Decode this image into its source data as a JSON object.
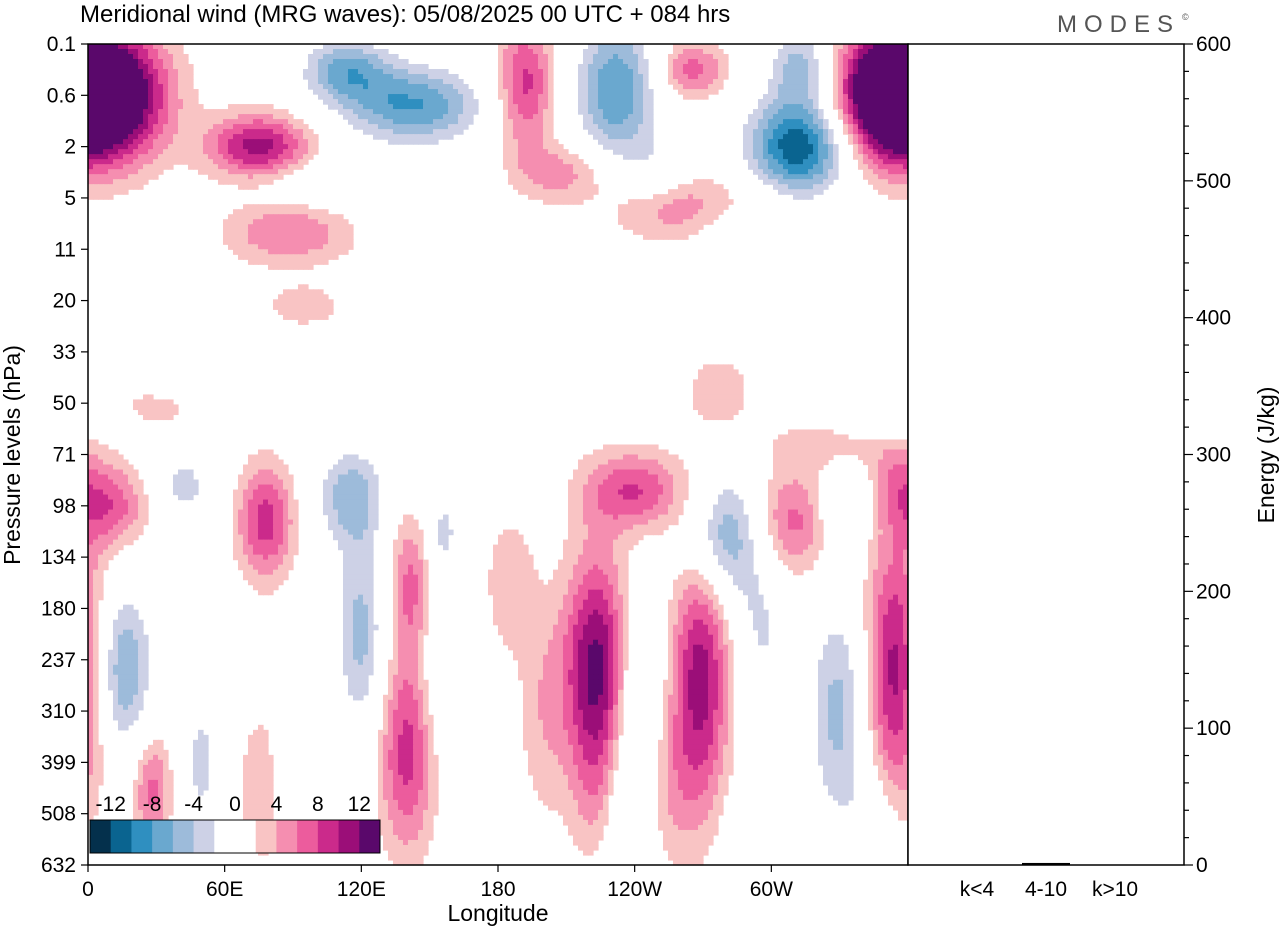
{
  "chart_data": {
    "type": "heatmap",
    "title": "Meridional wind (MRG waves):  05/08/2025  00 UTC  + 084 hrs",
    "logo": "MODES",
    "logo_mark": "©",
    "xlabel": "Longitude",
    "ylabel": "Pressure levels (hPa)",
    "x_ticks": [
      {
        "lon": 0,
        "label": "0"
      },
      {
        "lon": 60,
        "label": "60E"
      },
      {
        "lon": 120,
        "label": "120E"
      },
      {
        "lon": 180,
        "label": "180"
      },
      {
        "lon": 240,
        "label": "120W"
      },
      {
        "lon": 300,
        "label": "60W"
      }
    ],
    "xlim": [
      0,
      360
    ],
    "pressure_levels": [
      "0.1",
      "0.6",
      "2",
      "5",
      "11",
      "20",
      "33",
      "50",
      "71",
      "98",
      "134",
      "180",
      "237",
      "310",
      "399",
      "508",
      "632"
    ],
    "colorbar": {
      "levels": [
        -14,
        -12,
        -10,
        -8,
        -6,
        -4,
        -2,
        2,
        4,
        6,
        8,
        10,
        12,
        14
      ],
      "labels": [
        "-12",
        "-8",
        "-4",
        "0",
        "4",
        "8",
        "12"
      ],
      "label_values": [
        -12,
        -8,
        -4,
        0,
        4,
        8,
        12
      ],
      "colors": [
        "#04304c",
        "#0a6490",
        "#2f8fc0",
        "#6aa8cf",
        "#9dbbda",
        "#cdd1e6",
        "#ffffff",
        "#ffffff",
        "#f9c4c4",
        "#f58eb0",
        "#ec5c9d",
        "#cb2a8b",
        "#9b0e78",
        "#5a086b"
      ]
    },
    "blobs": [
      {
        "lon": 10,
        "lev": 1.0,
        "amp": 16,
        "wlon": 18,
        "wlev": 0.9
      },
      {
        "lon": 350,
        "lev": 1.0,
        "amp": 16,
        "wlon": 16,
        "wlev": 0.9
      },
      {
        "lon": 75,
        "lev": 2.0,
        "amp": 11,
        "wlon": 16,
        "wlev": 0.45
      },
      {
        "lon": 113,
        "lev": 0.5,
        "amp": -8,
        "wlon": 14,
        "wlev": 0.45
      },
      {
        "lon": 143,
        "lev": 1.2,
        "amp": -10,
        "wlon": 22,
        "wlev": 0.55
      },
      {
        "lon": 192,
        "lev": 0.8,
        "amp": 9,
        "wlon": 9,
        "wlev": 0.9
      },
      {
        "lon": 232,
        "lev": 0.9,
        "amp": -10,
        "wlon": 13,
        "wlev": 1.0
      },
      {
        "lon": 265,
        "lev": 0.5,
        "amp": 7,
        "wlon": 11,
        "wlev": 0.4
      },
      {
        "lon": 313,
        "lev": 0.4,
        "amp": -7,
        "wlon": 10,
        "wlev": 0.5
      },
      {
        "lon": 312,
        "lev": 2.0,
        "amp": -14,
        "wlon": 16,
        "wlev": 0.7
      },
      {
        "lon": 208,
        "lev": 2.5,
        "amp": 5,
        "wlon": 15,
        "wlev": 0.4
      },
      {
        "lon": 266,
        "lev": 3.2,
        "amp": 6,
        "wlon": 26,
        "wlev": 0.5
      },
      {
        "lon": 88,
        "lev": 3.7,
        "amp": 6,
        "wlon": 20,
        "wlev": 0.45
      },
      {
        "lon": 250,
        "lev": 2.5,
        "amp": -3.5,
        "wlon": 10,
        "wlev": 0.4
      },
      {
        "lon": 105,
        "lev": 2.7,
        "amp": -3.5,
        "wlon": 20,
        "wlev": 0.3
      },
      {
        "lon": 155,
        "lev": 3.2,
        "amp": -3.5,
        "wlon": 14,
        "wlev": 0.5
      },
      {
        "lon": 210,
        "lev": 4.5,
        "amp": -3.5,
        "wlon": 20,
        "wlev": 0.35
      },
      {
        "lon": 350,
        "lev": 4.3,
        "amp": -3.5,
        "wlon": 12,
        "wlev": 0.3
      },
      {
        "lon": 280,
        "lev": 3.6,
        "amp": -3.5,
        "wlon": 12,
        "wlev": 0.5
      },
      {
        "lon": 30,
        "lev": 7.0,
        "amp": 3.5,
        "wlon": 14,
        "wlev": 0.35
      },
      {
        "lon": 40,
        "lev": 6.5,
        "amp": -3.5,
        "wlon": 14,
        "wlev": 0.3
      },
      {
        "lon": 325,
        "lev": 7.8,
        "amp": 3.5,
        "wlon": 18,
        "wlev": 0.35
      },
      {
        "lon": 350,
        "lev": 7.2,
        "amp": -3.5,
        "wlon": 16,
        "wlev": 0.3
      },
      {
        "lon": 277,
        "lev": 6.8,
        "amp": 4,
        "wlon": 10,
        "wlev": 0.5
      },
      {
        "lon": 95,
        "lev": 5.1,
        "amp": 3.5,
        "wlon": 12,
        "wlev": 0.3
      },
      {
        "lon": 11,
        "lev": 9.0,
        "amp": 7,
        "wlon": 11,
        "wlev": 0.6
      },
      {
        "lon": 42,
        "lev": 8.6,
        "amp": -5,
        "wlon": 9,
        "wlev": 0.5
      },
      {
        "lon": 78,
        "lev": 9.3,
        "amp": 9,
        "wlon": 9,
        "wlev": 0.8
      },
      {
        "lon": 115,
        "lev": 8.8,
        "amp": -7,
        "wlon": 11,
        "wlev": 0.7
      },
      {
        "lon": 143,
        "lev": 10.5,
        "amp": 7,
        "wlon": 8,
        "wlev": 1.0
      },
      {
        "lon": 156,
        "lev": 9.5,
        "amp": -4,
        "wlon": 6,
        "wlev": 0.7
      },
      {
        "lon": 240,
        "lev": 8.7,
        "amp": 8,
        "wlon": 16,
        "wlev": 0.55
      },
      {
        "lon": 280,
        "lev": 9.6,
        "amp": -9,
        "wlon": 12,
        "wlev": 0.9
      },
      {
        "lon": 310,
        "lev": 9.3,
        "amp": 7,
        "wlon": 14,
        "wlev": 0.75
      },
      {
        "lon": 330,
        "lev": 9.0,
        "amp": -5,
        "wlon": 8,
        "wlev": 0.6
      },
      {
        "lon": 355,
        "lev": 8.5,
        "amp": 4,
        "wlon": 8,
        "wlev": 0.6
      },
      {
        "lon": 14,
        "lev": 12.2,
        "amp": -9,
        "wlon": 10,
        "wlev": 1.2
      },
      {
        "lon": 120,
        "lev": 11.5,
        "amp": -7,
        "wlon": 8,
        "wlev": 1.4
      },
      {
        "lon": 153,
        "lev": 11.5,
        "amp": -4,
        "wlon": 6,
        "wlev": 1.6
      },
      {
        "lon": 185,
        "lev": 10.5,
        "amp": 3.5,
        "wlon": 8,
        "wlev": 1.0
      },
      {
        "lon": 223,
        "lev": 12.2,
        "amp": 13,
        "wlon": 10,
        "wlev": 1.6
      },
      {
        "lon": 242,
        "lev": 12.5,
        "amp": -5,
        "wlon": 7,
        "wlev": 1.2
      },
      {
        "lon": 269,
        "lev": 12.3,
        "amp": 11,
        "wlon": 9,
        "wlev": 1.8
      },
      {
        "lon": 296,
        "lev": 11.5,
        "amp": -4,
        "wlon": 8,
        "wlev": 1.0
      },
      {
        "lon": 330,
        "lev": 13.0,
        "amp": -7,
        "wlon": 10,
        "wlev": 1.6
      },
      {
        "lon": 355,
        "lev": 12.2,
        "amp": 12,
        "wlon": 10,
        "wlev": 1.8
      },
      {
        "lon": 140,
        "lev": 13.8,
        "amp": 9,
        "wlon": 9,
        "wlev": 1.4
      },
      {
        "lon": 28,
        "lev": 14.5,
        "amp": 7,
        "wlon": 6,
        "wlev": 0.8
      },
      {
        "lon": 50,
        "lev": 14.0,
        "amp": -5,
        "wlon": 6,
        "wlev": 1.0
      },
      {
        "lon": 80,
        "lev": 14.5,
        "amp": 3.5,
        "wlon": 12,
        "wlev": 1.4
      },
      {
        "lon": 90,
        "lev": 14.3,
        "amp": -3.5,
        "wlon": 7,
        "wlev": 1.0
      },
      {
        "lon": 200,
        "lev": 13.0,
        "amp": 3.5,
        "wlon": 8,
        "wlev": 1.5
      },
      {
        "lon": 236,
        "lev": 15.0,
        "amp": -6,
        "wlon": 8,
        "wlev": 1.2
      },
      {
        "lon": 255,
        "lev": 14.5,
        "amp": 3.5,
        "wlon": 10,
        "wlev": 1.2
      },
      {
        "lon": 298,
        "lev": 15.5,
        "amp": -3.5,
        "wlon": 10,
        "wlev": 0.8
      },
      {
        "lon": 225,
        "lev": 14.8,
        "amp": 3.5,
        "wlon": 8,
        "wlev": 1.0
      },
      {
        "lon": 345,
        "lev": 15.5,
        "amp": -3.5,
        "wlon": 8,
        "wlev": 0.9
      }
    ],
    "energy_axis": {
      "label": "Energy (J/kg)",
      "ylim": [
        0,
        600
      ],
      "ticks": [
        0,
        100,
        200,
        300,
        400,
        500,
        600
      ]
    },
    "energy_bars": [
      {
        "label": "k<4",
        "value": 0.3
      },
      {
        "label": "4-10",
        "value": 1.5
      },
      {
        "label": "k>10",
        "value": 0.3
      }
    ]
  }
}
